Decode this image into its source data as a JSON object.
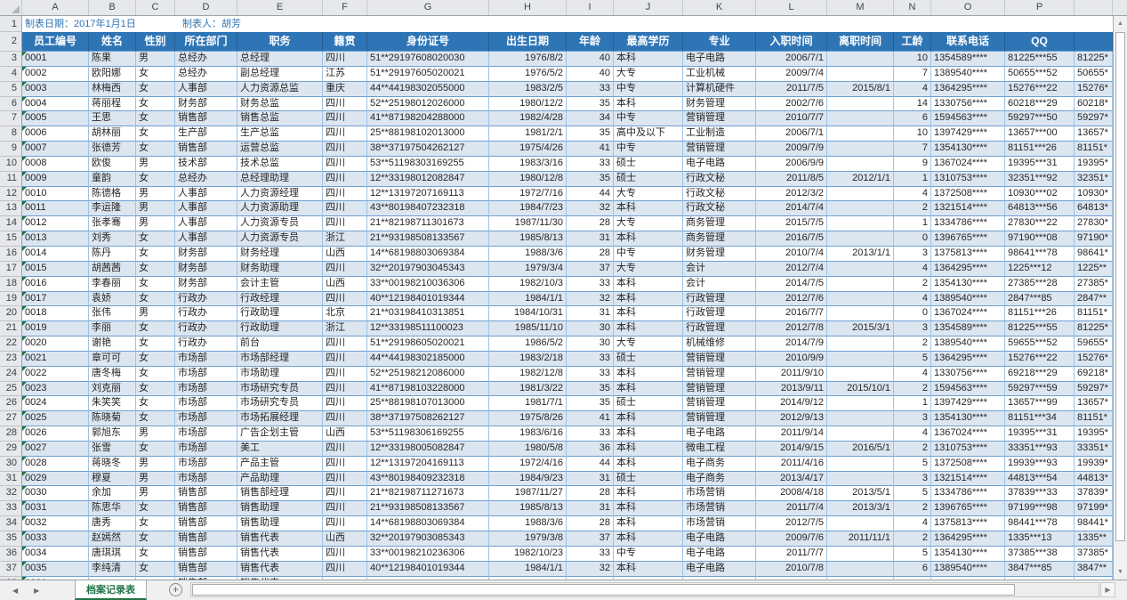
{
  "title_row": {
    "date": "制表日期：2017年1月1日",
    "author": "制表人：胡芳"
  },
  "column_letters": [
    "A",
    "B",
    "C",
    "D",
    "E",
    "F",
    "G",
    "H",
    "I",
    "J",
    "K",
    "L",
    "M",
    "N",
    "O",
    "P",
    ""
  ],
  "headers": [
    "员工编号",
    "姓名",
    "性别",
    "所在部门",
    "职务",
    "籍贯",
    "身份证号",
    "出生日期",
    "年龄",
    "最高学历",
    "专业",
    "入职时间",
    "离职时间",
    "工龄",
    "联系电话",
    "QQ",
    ""
  ],
  "first_data_row_number": 3,
  "rows": [
    [
      "0001",
      "陈果",
      "男",
      "总经办",
      "总经理",
      "四川",
      "51**29197608020030",
      "1976/8/2",
      "40",
      "本科",
      "电子电路",
      "2006/7/1",
      "",
      "10",
      "1354589****",
      "81225***55",
      "81225*"
    ],
    [
      "0002",
      "欧阳娜",
      "女",
      "总经办",
      "副总经理",
      "江苏",
      "51**29197605020021",
      "1976/5/2",
      "40",
      "大专",
      "工业机械",
      "2009/7/4",
      "",
      "7",
      "1389540****",
      "50655***52",
      "50655*"
    ],
    [
      "0003",
      "林梅西",
      "女",
      "人事部",
      "人力资源总监",
      "重庆",
      "44**44198302055000",
      "1983/2/5",
      "33",
      "中专",
      "计算机硬件",
      "2011/7/5",
      "2015/8/1",
      "4",
      "1364295****",
      "15276***22",
      "15276*"
    ],
    [
      "0004",
      "蒋丽程",
      "女",
      "财务部",
      "财务总监",
      "四川",
      "52**25198012026000",
      "1980/12/2",
      "35",
      "本科",
      "财务管理",
      "2002/7/6",
      "",
      "14",
      "1330756****",
      "60218***29",
      "60218*"
    ],
    [
      "0005",
      "王思",
      "女",
      "销售部",
      "销售总监",
      "四川",
      "41**87198204288000",
      "1982/4/28",
      "34",
      "中专",
      "营销管理",
      "2010/7/7",
      "",
      "6",
      "1594563****",
      "59297***50",
      "59297*"
    ],
    [
      "0006",
      "胡林丽",
      "女",
      "生产部",
      "生产总监",
      "四川",
      "25**88198102013000",
      "1981/2/1",
      "35",
      "高中及以下",
      "工业制造",
      "2006/7/1",
      "",
      "10",
      "1397429****",
      "13657***00",
      "13657*"
    ],
    [
      "0007",
      "张德芳",
      "女",
      "销售部",
      "运营总监",
      "四川",
      "38**37197504262127",
      "1975/4/26",
      "41",
      "中专",
      "营销管理",
      "2009/7/9",
      "",
      "7",
      "1354130****",
      "81151***26",
      "81151*"
    ],
    [
      "0008",
      "欧俊",
      "男",
      "技术部",
      "技术总监",
      "四川",
      "53**51198303169255",
      "1983/3/16",
      "33",
      "硕士",
      "电子电路",
      "2006/9/9",
      "",
      "9",
      "1367024****",
      "19395***31",
      "19395*"
    ],
    [
      "0009",
      "童韵",
      "女",
      "总经办",
      "总经理助理",
      "四川",
      "12**33198012082847",
      "1980/12/8",
      "35",
      "硕士",
      "行政文秘",
      "2011/8/5",
      "2012/1/1",
      "1",
      "1310753****",
      "32351***92",
      "32351*"
    ],
    [
      "0010",
      "陈德格",
      "男",
      "人事部",
      "人力资源经理",
      "四川",
      "12**13197207169113",
      "1972/7/16",
      "44",
      "大专",
      "行政文秘",
      "2012/3/2",
      "",
      "4",
      "1372508****",
      "10930***02",
      "10930*"
    ],
    [
      "0011",
      "李运隆",
      "男",
      "人事部",
      "人力资源助理",
      "四川",
      "43**80198407232318",
      "1984/7/23",
      "32",
      "本科",
      "行政文秘",
      "2014/7/4",
      "",
      "2",
      "1321514****",
      "64813***56",
      "64813*"
    ],
    [
      "0012",
      "张孝骞",
      "男",
      "人事部",
      "人力资源专员",
      "四川",
      "21**82198711301673",
      "1987/11/30",
      "28",
      "大专",
      "商务管理",
      "2015/7/5",
      "",
      "1",
      "1334786****",
      "27830***22",
      "27830*"
    ],
    [
      "0013",
      "刘秀",
      "女",
      "人事部",
      "人力资源专员",
      "浙江",
      "21**93198508133567",
      "1985/8/13",
      "31",
      "本科",
      "商务管理",
      "2016/7/5",
      "",
      "0",
      "1396765****",
      "97190***08",
      "97190*"
    ],
    [
      "0014",
      "陈丹",
      "女",
      "财务部",
      "财务经理",
      "山西",
      "14**68198803069384",
      "1988/3/6",
      "28",
      "中专",
      "财务管理",
      "2010/7/4",
      "2013/1/1",
      "3",
      "1375813****",
      "98641***78",
      "98641*"
    ],
    [
      "0015",
      "胡茜茜",
      "女",
      "财务部",
      "财务助理",
      "四川",
      "32**20197903045343",
      "1979/3/4",
      "37",
      "大专",
      "会计",
      "2012/7/4",
      "",
      "4",
      "1364295****",
      "1225***12",
      "1225**"
    ],
    [
      "0016",
      "李春丽",
      "女",
      "财务部",
      "会计主管",
      "山西",
      "33**00198210036306",
      "1982/10/3",
      "33",
      "本科",
      "会计",
      "2014/7/5",
      "",
      "2",
      "1354130****",
      "27385***28",
      "27385*"
    ],
    [
      "0017",
      "袁娇",
      "女",
      "行政办",
      "行政经理",
      "四川",
      "40**12198401019344",
      "1984/1/1",
      "32",
      "本科",
      "行政管理",
      "2012/7/6",
      "",
      "4",
      "1389540****",
      "2847***85",
      "2847**"
    ],
    [
      "0018",
      "张伟",
      "男",
      "行政办",
      "行政助理",
      "北京",
      "21**03198410313851",
      "1984/10/31",
      "31",
      "本科",
      "行政管理",
      "2016/7/7",
      "",
      "0",
      "1367024****",
      "81151***26",
      "81151*"
    ],
    [
      "0019",
      "李丽",
      "女",
      "行政办",
      "行政助理",
      "浙江",
      "12**33198511100023",
      "1985/11/10",
      "30",
      "本科",
      "行政管理",
      "2012/7/8",
      "2015/3/1",
      "3",
      "1354589****",
      "81225***55",
      "81225*"
    ],
    [
      "0020",
      "谢艳",
      "女",
      "行政办",
      "前台",
      "四川",
      "51**29198605020021",
      "1986/5/2",
      "30",
      "大专",
      "机械维修",
      "2014/7/9",
      "",
      "2",
      "1389540****",
      "59655***52",
      "59655*"
    ],
    [
      "0021",
      "章可可",
      "女",
      "市场部",
      "市场部经理",
      "四川",
      "44**44198302185000",
      "1983/2/18",
      "33",
      "硕士",
      "营销管理",
      "2010/9/9",
      "",
      "5",
      "1364295****",
      "15276***22",
      "15276*"
    ],
    [
      "0022",
      "唐冬梅",
      "女",
      "市场部",
      "市场助理",
      "四川",
      "52**25198212086000",
      "1982/12/8",
      "33",
      "本科",
      "营销管理",
      "2011/9/10",
      "",
      "4",
      "1330756****",
      "69218***29",
      "69218*"
    ],
    [
      "0023",
      "刘克丽",
      "女",
      "市场部",
      "市场研究专员",
      "四川",
      "41**87198103228000",
      "1981/3/22",
      "35",
      "本科",
      "营销管理",
      "2013/9/11",
      "2015/10/1",
      "2",
      "1594563****",
      "59297***59",
      "59297*"
    ],
    [
      "0024",
      "朱笑笑",
      "女",
      "市场部",
      "市场研究专员",
      "四川",
      "25**88198107013000",
      "1981/7/1",
      "35",
      "硕士",
      "营销管理",
      "2014/9/12",
      "",
      "1",
      "1397429****",
      "13657***99",
      "13657*"
    ],
    [
      "0025",
      "陈晓菊",
      "女",
      "市场部",
      "市场拓展经理",
      "四川",
      "38**37197508262127",
      "1975/8/26",
      "41",
      "本科",
      "营销管理",
      "2012/9/13",
      "",
      "3",
      "1354130****",
      "81151***34",
      "81151*"
    ],
    [
      "0026",
      "郭旭东",
      "男",
      "市场部",
      "广告企划主管",
      "山西",
      "53**51198306169255",
      "1983/6/16",
      "33",
      "本科",
      "电子电路",
      "2011/9/14",
      "",
      "4",
      "1367024****",
      "19395***31",
      "19395*"
    ],
    [
      "0027",
      "张雪",
      "女",
      "市场部",
      "美工",
      "四川",
      "12**33198005082847",
      "1980/5/8",
      "36",
      "本科",
      "微电工程",
      "2014/9/15",
      "2016/5/1",
      "2",
      "1310753****",
      "33351***93",
      "33351*"
    ],
    [
      "0028",
      "蒋晓冬",
      "男",
      "市场部",
      "产品主管",
      "四川",
      "12**13197204169113",
      "1972/4/16",
      "44",
      "本科",
      "电子商务",
      "2011/4/16",
      "",
      "5",
      "1372508****",
      "19939***93",
      "19939*"
    ],
    [
      "0029",
      "穆夏",
      "男",
      "市场部",
      "产品助理",
      "四川",
      "43**80198409232318",
      "1984/9/23",
      "31",
      "硕士",
      "电子商务",
      "2013/4/17",
      "",
      "3",
      "1321514****",
      "44813***54",
      "44813*"
    ],
    [
      "0030",
      "余加",
      "男",
      "销售部",
      "销售部经理",
      "四川",
      "21**82198711271673",
      "1987/11/27",
      "28",
      "本科",
      "市场营销",
      "2008/4/18",
      "2013/5/1",
      "5",
      "1334786****",
      "37839***33",
      "37839*"
    ],
    [
      "0031",
      "陈思华",
      "女",
      "销售部",
      "销售助理",
      "四川",
      "21**93198508133567",
      "1985/8/13",
      "31",
      "本科",
      "市场营销",
      "2011/7/4",
      "2013/3/1",
      "2",
      "1396765****",
      "97199***98",
      "97199*"
    ],
    [
      "0032",
      "唐秀",
      "女",
      "销售部",
      "销售助理",
      "四川",
      "14**68198803069384",
      "1988/3/6",
      "28",
      "本科",
      "市场营销",
      "2012/7/5",
      "",
      "4",
      "1375813****",
      "98441***78",
      "98441*"
    ],
    [
      "0033",
      "赵嫣然",
      "女",
      "销售部",
      "销售代表",
      "山西",
      "32**20197903085343",
      "1979/3/8",
      "37",
      "本科",
      "电子电路",
      "2009/7/6",
      "2011/11/1",
      "2",
      "1364295****",
      "1335***13",
      "1335**"
    ],
    [
      "0034",
      "唐琪琪",
      "女",
      "销售部",
      "销售代表",
      "四川",
      "33**00198210236306",
      "1982/10/23",
      "33",
      "中专",
      "电子电路",
      "2011/7/7",
      "",
      "5",
      "1354130****",
      "37385***38",
      "37385*"
    ],
    [
      "0035",
      "李纯清",
      "女",
      "销售部",
      "销售代表",
      "四川",
      "40**12198401019344",
      "1984/1/1",
      "32",
      "本科",
      "电子电路",
      "2010/7/8",
      "",
      "6",
      "1389540****",
      "3847***85",
      "3847**"
    ]
  ],
  "partial_row": [
    "0036",
    "",
    "",
    "销售部",
    "销售代表",
    "",
    "",
    "",
    "",
    "",
    "",
    "",
    "",
    "",
    "",
    "",
    ""
  ],
  "partial_row_number": "38",
  "sheet_bar": {
    "active_tab": "档案记录表",
    "prev_icon": "◀",
    "next_icon": "▶",
    "add_icon": "+"
  },
  "scrollbar": {
    "up_icon": "▲",
    "down_icon": "▼",
    "right_icon": "▶"
  },
  "colors": {
    "header_bg": "#2E75B6",
    "band_bg": "#DCE6F1",
    "grid_hline": "#6FA0D0",
    "grid_vline": "#9DC3E6",
    "title_text": "#2E75B6",
    "tab_text": "#217346",
    "strip_bg": "#E6E8EB",
    "strip_border": "#9FA4AA"
  }
}
